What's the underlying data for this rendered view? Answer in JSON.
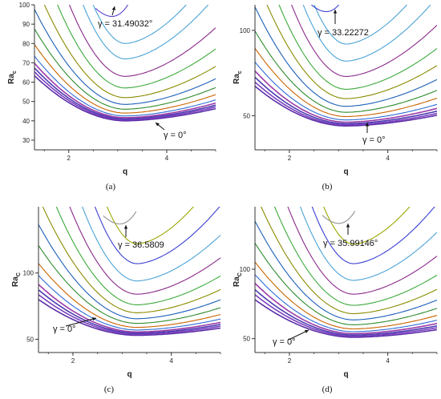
{
  "figure": {
    "captions": [
      "(a)",
      "(b)",
      "(c)",
      "(d)"
    ]
  },
  "chart_data": [
    {
      "type": "line",
      "panel": "(a)",
      "xlabel": "q",
      "ylabel": "Ra_c",
      "ylabel_main": "Ra",
      "ylabel_sub": "c",
      "xlim": [
        1.3,
        5.0
      ],
      "ylim": [
        25,
        100
      ],
      "xticks": [
        2,
        4
      ],
      "yticks": [
        30,
        40,
        50,
        60,
        70,
        80,
        90,
        100
      ],
      "curves": [
        {
          "min_q": 3.15,
          "min_y": 40.0,
          "color": "#5b2da8"
        },
        {
          "min_q": 3.15,
          "min_y": 40.5,
          "color": "#7a3fbf"
        },
        {
          "min_q": 3.15,
          "min_y": 41.0,
          "color": "#4b3bb0"
        },
        {
          "min_q": 3.15,
          "min_y": 41.6,
          "color": "#9b3aa8"
        },
        {
          "min_q": 3.15,
          "min_y": 42.5,
          "color": "#2e6bd6"
        },
        {
          "min_q": 3.15,
          "min_y": 44.0,
          "color": "#c86400"
        },
        {
          "min_q": 3.15,
          "min_y": 46.0,
          "color": "#2e8b2e"
        },
        {
          "min_q": 3.15,
          "min_y": 48.5,
          "color": "#1c5fb8"
        },
        {
          "min_q": 3.15,
          "min_y": 52.0,
          "color": "#8a8a00"
        },
        {
          "min_q": 3.15,
          "min_y": 57.0,
          "color": "#3caa3c"
        },
        {
          "min_q": 3.15,
          "min_y": 63.0,
          "color": "#8a2a8a"
        },
        {
          "min_q": 3.15,
          "min_y": 72.0,
          "color": "#4ba3d6"
        },
        {
          "min_q": 3.15,
          "min_y": 80.0,
          "color": "#4ba3d6"
        },
        {
          "min_q": 2.88,
          "min_y": 94.0,
          "color": "#5a3fd0",
          "loop": true
        }
      ],
      "annotations": [
        {
          "text": "γ = 31.49032°",
          "points_to": "top curve"
        },
        {
          "text": "γ = 0°",
          "points_to": "lowest curve"
        }
      ]
    },
    {
      "type": "line",
      "panel": "(b)",
      "xlabel": "q",
      "ylabel": "Ra_c",
      "ylabel_main": "Ra",
      "ylabel_sub": "c",
      "xlim": [
        1.3,
        5.0
      ],
      "ylim": [
        30,
        115
      ],
      "xticks": [
        2,
        4
      ],
      "yticks": [
        50,
        100
      ],
      "curves": [
        {
          "min_q": 3.15,
          "min_y": 44.0,
          "color": "#5b2da8"
        },
        {
          "min_q": 3.15,
          "min_y": 44.6,
          "color": "#7a3fbf"
        },
        {
          "min_q": 3.15,
          "min_y": 45.3,
          "color": "#4b3bb0"
        },
        {
          "min_q": 3.15,
          "min_y": 46.2,
          "color": "#9b3aa8"
        },
        {
          "min_q": 3.15,
          "min_y": 47.5,
          "color": "#2e6bd6"
        },
        {
          "min_q": 3.15,
          "min_y": 49.5,
          "color": "#c86400"
        },
        {
          "min_q": 3.15,
          "min_y": 52.0,
          "color": "#2e8b2e"
        },
        {
          "min_q": 3.15,
          "min_y": 55.5,
          "color": "#1c5fb8"
        },
        {
          "min_q": 3.15,
          "min_y": 60.0,
          "color": "#8a8a00"
        },
        {
          "min_q": 3.15,
          "min_y": 65.5,
          "color": "#3caa3c"
        },
        {
          "min_q": 3.15,
          "min_y": 73.0,
          "color": "#8a2a8a"
        },
        {
          "min_q": 3.15,
          "min_y": 82.0,
          "color": "#4ba3d6"
        },
        {
          "min_q": 3.15,
          "min_y": 92.0,
          "color": "#4ba3d6"
        },
        {
          "min_q": 2.75,
          "min_y": 111.0,
          "color": "#3a3fd0",
          "loop": true
        }
      ],
      "annotations": [
        {
          "text": "γ = 33.22272",
          "points_to": "top curve"
        },
        {
          "text": "γ = 0°",
          "points_to": "lowest curve"
        }
      ]
    },
    {
      "type": "line",
      "panel": "(c)",
      "xlabel": "q",
      "ylabel": "Ra_C",
      "ylabel_main": "Ra",
      "ylabel_sub": "C",
      "xlim": [
        1.3,
        5.0
      ],
      "ylim": [
        40,
        150
      ],
      "xticks": [
        2,
        4
      ],
      "yticks": [
        50,
        100
      ],
      "curves": [
        {
          "min_q": 3.3,
          "min_y": 53.0,
          "color": "#5b2da8"
        },
        {
          "min_q": 3.3,
          "min_y": 53.8,
          "color": "#7a3fbf"
        },
        {
          "min_q": 3.3,
          "min_y": 54.6,
          "color": "#4b3bb0"
        },
        {
          "min_q": 3.3,
          "min_y": 55.5,
          "color": "#9b3aa8"
        },
        {
          "min_q": 3.3,
          "min_y": 57.0,
          "color": "#2e6bd6"
        },
        {
          "min_q": 3.3,
          "min_y": 59.0,
          "color": "#c86400"
        },
        {
          "min_q": 3.3,
          "min_y": 62.0,
          "color": "#2e8b2e"
        },
        {
          "min_q": 3.3,
          "min_y": 65.5,
          "color": "#1c5fb8"
        },
        {
          "min_q": 3.3,
          "min_y": 70.0,
          "color": "#8a8a00"
        },
        {
          "min_q": 3.3,
          "min_y": 76.0,
          "color": "#3caa3c"
        },
        {
          "min_q": 3.3,
          "min_y": 84.0,
          "color": "#8a2a8a"
        },
        {
          "min_q": 3.3,
          "min_y": 94.0,
          "color": "#4ba3d6"
        },
        {
          "min_q": 3.3,
          "min_y": 107.0,
          "color": "#3a3fd0"
        },
        {
          "min_q": 3.3,
          "min_y": 122.0,
          "color": "#9aa800"
        },
        {
          "min_q": 2.95,
          "min_y": 137.0,
          "color": "#909090",
          "loop": true
        }
      ],
      "annotations": [
        {
          "text": "γ = 36.5809",
          "points_to": "top curve"
        },
        {
          "text": "γ = 0°",
          "points_to": "lowest curve"
        }
      ]
    },
    {
      "type": "line",
      "panel": "(d)",
      "xlabel": "q",
      "ylabel": "Ra_C",
      "ylabel_main": "Ra",
      "ylabel_sub": "C",
      "xlim": [
        1.3,
        5.0
      ],
      "ylim": [
        40,
        145
      ],
      "xticks": [
        2,
        4
      ],
      "yticks": [
        50,
        100
      ],
      "curves": [
        {
          "min_q": 3.3,
          "min_y": 51.0,
          "color": "#5b2da8"
        },
        {
          "min_q": 3.3,
          "min_y": 51.8,
          "color": "#7a3fbf"
        },
        {
          "min_q": 3.3,
          "min_y": 52.6,
          "color": "#4b3bb0"
        },
        {
          "min_q": 3.3,
          "min_y": 53.6,
          "color": "#9b3aa8"
        },
        {
          "min_q": 3.3,
          "min_y": 55.0,
          "color": "#2e6bd6"
        },
        {
          "min_q": 3.3,
          "min_y": 57.0,
          "color": "#c86400"
        },
        {
          "min_q": 3.3,
          "min_y": 60.0,
          "color": "#2e8b2e"
        },
        {
          "min_q": 3.3,
          "min_y": 63.5,
          "color": "#1c5fb8"
        },
        {
          "min_q": 3.3,
          "min_y": 68.0,
          "color": "#8a8a00"
        },
        {
          "min_q": 3.3,
          "min_y": 74.0,
          "color": "#3caa3c"
        },
        {
          "min_q": 3.3,
          "min_y": 82.0,
          "color": "#8a2a8a"
        },
        {
          "min_q": 3.3,
          "min_y": 92.0,
          "color": "#4ba3d6"
        },
        {
          "min_q": 3.3,
          "min_y": 104.0,
          "color": "#3a3fd0"
        },
        {
          "min_q": 3.3,
          "min_y": 118.0,
          "color": "#9aa800"
        },
        {
          "min_q": 3.0,
          "min_y": 133.0,
          "color": "#909090",
          "loop": true
        }
      ],
      "annotations": [
        {
          "text": "γ = 35.99146°",
          "points_to": "top curve"
        },
        {
          "text": "γ = 0°",
          "points_to": "lowest curve"
        }
      ]
    }
  ]
}
